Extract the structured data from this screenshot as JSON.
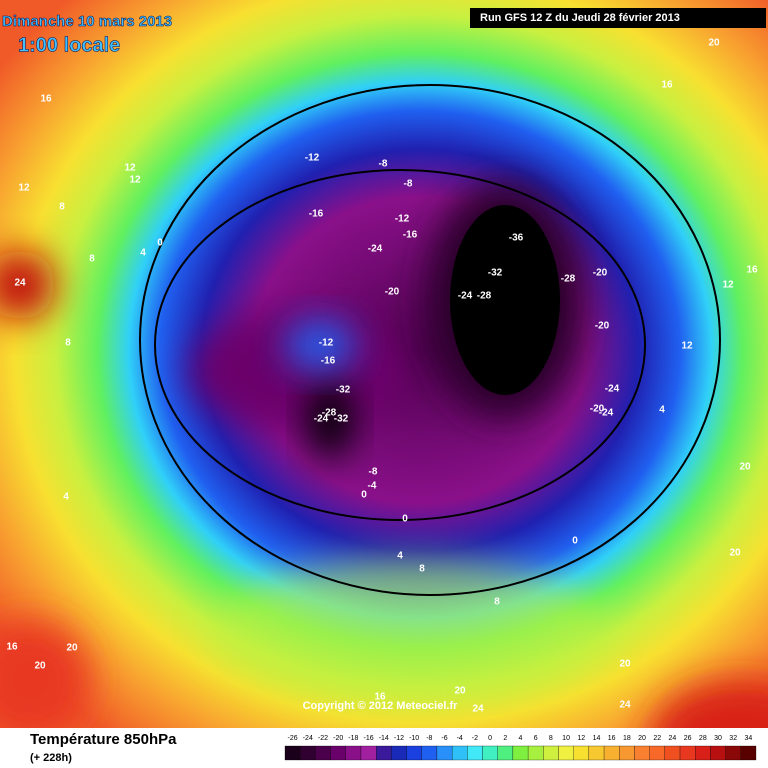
{
  "header": {
    "date": "Dimanche 10 mars 2013",
    "time": "1:00 locale",
    "run": "Run GFS 12 Z du Jeudi 28 février 2013"
  },
  "copyright": "Copyright © 2012 Meteociel.fr",
  "footer": {
    "title": "Température 850hPa",
    "subtitle": "(+ 228h)"
  },
  "scale": {
    "labels": [
      -26,
      -24,
      -22,
      -20,
      -18,
      -16,
      -14,
      -12,
      -10,
      -8,
      -6,
      -4,
      -2,
      0,
      2,
      4,
      6,
      8,
      10,
      12,
      14,
      16,
      18,
      20,
      22,
      24,
      26,
      28,
      30,
      32,
      34
    ],
    "colors": [
      "#1a001a",
      "#300030",
      "#4a004a",
      "#6a006a",
      "#8a108a",
      "#a020a0",
      "#3a1a9a",
      "#1a2ab8",
      "#1a40e0",
      "#2060f0",
      "#2890f8",
      "#30c0f8",
      "#40e8f8",
      "#40f0c0",
      "#50f080",
      "#80f040",
      "#a8f040",
      "#d0f040",
      "#f0f040",
      "#f8e030",
      "#f8c830",
      "#f8b030",
      "#f89830",
      "#f88030",
      "#f86828",
      "#f05020",
      "#e83820",
      "#d82018",
      "#b81010",
      "#8a0808",
      "#580000"
    ]
  },
  "map_labels": [
    "16",
    "12",
    "12",
    "12",
    "8",
    "4",
    "0",
    "8",
    "24",
    "8",
    "4",
    "16",
    "20",
    "20",
    "-12",
    "-8",
    "-8",
    "-16",
    "-12",
    "-16",
    "-24",
    "-36",
    "-32",
    "-28",
    "-20",
    "-24",
    "-28",
    "-20",
    "-20",
    "-12",
    "-16",
    "-32",
    "-28",
    "-24",
    "-32",
    "-24",
    "-20",
    "-24",
    "-8",
    "-4",
    "0",
    "0",
    "0",
    "4",
    "8",
    "8",
    "16",
    "20",
    "24",
    "24",
    "20",
    "20",
    "20",
    "16",
    "12",
    "12",
    "4",
    "16",
    "20"
  ]
}
